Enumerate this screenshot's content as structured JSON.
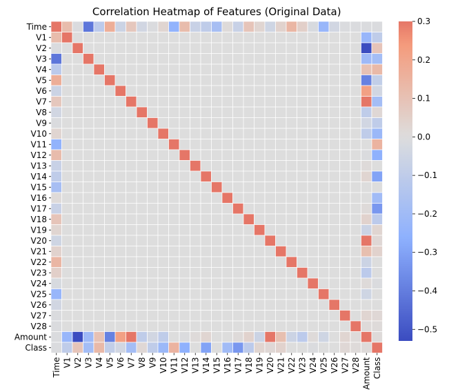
{
  "chart_data": {
    "type": "heatmap",
    "title": "Correlation Heatmap of Features (Original Data)",
    "labels": [
      "Time",
      "V1",
      "V2",
      "V3",
      "V4",
      "V5",
      "V6",
      "V7",
      "V8",
      "V9",
      "V10",
      "V11",
      "V12",
      "V13",
      "V14",
      "V15",
      "V16",
      "V17",
      "V18",
      "V19",
      "V20",
      "V21",
      "V22",
      "V23",
      "V24",
      "V25",
      "V26",
      "V27",
      "V28",
      "Amount",
      "Class"
    ],
    "color_scale": {
      "min": -0.53,
      "max": 0.3,
      "cmap": "coolwarm",
      "center": 0.0,
      "ticks": [
        0.3,
        0.2,
        0.1,
        0.0,
        -0.1,
        -0.2,
        -0.3,
        -0.4,
        -0.5
      ],
      "tick_labels": [
        "0.3",
        "0.2",
        "0.1",
        "0.0",
        "−0.1",
        "−0.2",
        "−0.3",
        "−0.4",
        "−0.5"
      ]
    },
    "diagonal": 1.0,
    "pairs": [
      {
        "a": "Time",
        "b": "V1",
        "r": 0.12
      },
      {
        "a": "Time",
        "b": "V2",
        "r": -0.01
      },
      {
        "a": "Time",
        "b": "V3",
        "r": -0.42
      },
      {
        "a": "Time",
        "b": "V4",
        "r": -0.11
      },
      {
        "a": "Time",
        "b": "V5",
        "r": 0.17
      },
      {
        "a": "Time",
        "b": "V6",
        "r": -0.06
      },
      {
        "a": "Time",
        "b": "V7",
        "r": 0.08
      },
      {
        "a": "Time",
        "b": "V8",
        "r": -0.04
      },
      {
        "a": "Time",
        "b": "V9",
        "r": -0.01
      },
      {
        "a": "Time",
        "b": "V10",
        "r": 0.03
      },
      {
        "a": "Time",
        "b": "V11",
        "r": -0.25
      },
      {
        "a": "Time",
        "b": "V12",
        "r": 0.12
      },
      {
        "a": "Time",
        "b": "V13",
        "r": -0.07
      },
      {
        "a": "Time",
        "b": "V14",
        "r": -0.1
      },
      {
        "a": "Time",
        "b": "V15",
        "r": -0.18
      },
      {
        "a": "Time",
        "b": "V16",
        "r": 0.01
      },
      {
        "a": "Time",
        "b": "V17",
        "r": -0.07
      },
      {
        "a": "Time",
        "b": "V18",
        "r": 0.09
      },
      {
        "a": "Time",
        "b": "V19",
        "r": 0.03
      },
      {
        "a": "Time",
        "b": "V20",
        "r": -0.05
      },
      {
        "a": "Time",
        "b": "V21",
        "r": 0.04
      },
      {
        "a": "Time",
        "b": "V22",
        "r": 0.14
      },
      {
        "a": "Time",
        "b": "V23",
        "r": 0.05
      },
      {
        "a": "Time",
        "b": "V24",
        "r": -0.02
      },
      {
        "a": "Time",
        "b": "V25",
        "r": -0.23
      },
      {
        "a": "Time",
        "b": "V26",
        "r": -0.04
      },
      {
        "a": "Time",
        "b": "V27",
        "r": -0.01
      },
      {
        "a": "Time",
        "b": "V28",
        "r": -0.01
      },
      {
        "a": "Time",
        "b": "Amount",
        "r": -0.01
      },
      {
        "a": "Time",
        "b": "Class",
        "r": -0.01
      },
      {
        "a": "Amount",
        "b": "V1",
        "r": -0.23
      },
      {
        "a": "Amount",
        "b": "V2",
        "r": -0.53
      },
      {
        "a": "Amount",
        "b": "V3",
        "r": -0.21
      },
      {
        "a": "Amount",
        "b": "V4",
        "r": 0.1
      },
      {
        "a": "Amount",
        "b": "V5",
        "r": -0.39
      },
      {
        "a": "Amount",
        "b": "V6",
        "r": 0.22
      },
      {
        "a": "Amount",
        "b": "V7",
        "r": 0.4
      },
      {
        "a": "Amount",
        "b": "V8",
        "r": -0.1
      },
      {
        "a": "Amount",
        "b": "V9",
        "r": -0.04
      },
      {
        "a": "Amount",
        "b": "V10",
        "r": -0.1
      },
      {
        "a": "Amount",
        "b": "V11",
        "r": 0.0
      },
      {
        "a": "Amount",
        "b": "V12",
        "r": -0.01
      },
      {
        "a": "Amount",
        "b": "V13",
        "r": 0.01
      },
      {
        "a": "Amount",
        "b": "V14",
        "r": 0.03
      },
      {
        "a": "Amount",
        "b": "V15",
        "r": -0.0
      },
      {
        "a": "Amount",
        "b": "V16",
        "r": -0.0
      },
      {
        "a": "Amount",
        "b": "V17",
        "r": 0.01
      },
      {
        "a": "Amount",
        "b": "V18",
        "r": 0.04
      },
      {
        "a": "Amount",
        "b": "V19",
        "r": -0.06
      },
      {
        "a": "Amount",
        "b": "V20",
        "r": 0.34
      },
      {
        "a": "Amount",
        "b": "V21",
        "r": 0.11
      },
      {
        "a": "Amount",
        "b": "V22",
        "r": -0.06
      },
      {
        "a": "Amount",
        "b": "V23",
        "r": -0.11
      },
      {
        "a": "Amount",
        "b": "V24",
        "r": 0.01
      },
      {
        "a": "Amount",
        "b": "V25",
        "r": -0.05
      },
      {
        "a": "Amount",
        "b": "V26",
        "r": -0.0
      },
      {
        "a": "Amount",
        "b": "V27",
        "r": 0.03
      },
      {
        "a": "Amount",
        "b": "V28",
        "r": 0.01
      },
      {
        "a": "Amount",
        "b": "Class",
        "r": 0.01
      },
      {
        "a": "Class",
        "b": "V1",
        "r": -0.1
      },
      {
        "a": "Class",
        "b": "V2",
        "r": 0.09
      },
      {
        "a": "Class",
        "b": "V3",
        "r": -0.19
      },
      {
        "a": "Class",
        "b": "V4",
        "r": 0.13
      },
      {
        "a": "Class",
        "b": "V5",
        "r": -0.09
      },
      {
        "a": "Class",
        "b": "V6",
        "r": -0.04
      },
      {
        "a": "Class",
        "b": "V7",
        "r": -0.19
      },
      {
        "a": "Class",
        "b": "V8",
        "r": 0.02
      },
      {
        "a": "Class",
        "b": "V9",
        "r": -0.1
      },
      {
        "a": "Class",
        "b": "V10",
        "r": -0.22
      },
      {
        "a": "Class",
        "b": "V11",
        "r": 0.15
      },
      {
        "a": "Class",
        "b": "V12",
        "r": -0.26
      },
      {
        "a": "Class",
        "b": "V13",
        "r": -0.0
      },
      {
        "a": "Class",
        "b": "V14",
        "r": -0.3
      },
      {
        "a": "Class",
        "b": "V15",
        "r": -0.0
      },
      {
        "a": "Class",
        "b": "V16",
        "r": -0.2
      },
      {
        "a": "Class",
        "b": "V17",
        "r": -0.33
      },
      {
        "a": "Class",
        "b": "V18",
        "r": -0.11
      },
      {
        "a": "Class",
        "b": "V19",
        "r": 0.03
      },
      {
        "a": "Class",
        "b": "V20",
        "r": 0.02
      },
      {
        "a": "Class",
        "b": "V21",
        "r": 0.04
      },
      {
        "a": "Class",
        "b": "V22",
        "r": 0.0
      },
      {
        "a": "Class",
        "b": "V23",
        "r": -0.0
      },
      {
        "a": "Class",
        "b": "V24",
        "r": -0.01
      },
      {
        "a": "Class",
        "b": "V25",
        "r": 0.0
      },
      {
        "a": "Class",
        "b": "V26",
        "r": 0.0
      },
      {
        "a": "Class",
        "b": "V27",
        "r": 0.02
      },
      {
        "a": "Class",
        "b": "V28",
        "r": 0.01
      }
    ]
  }
}
